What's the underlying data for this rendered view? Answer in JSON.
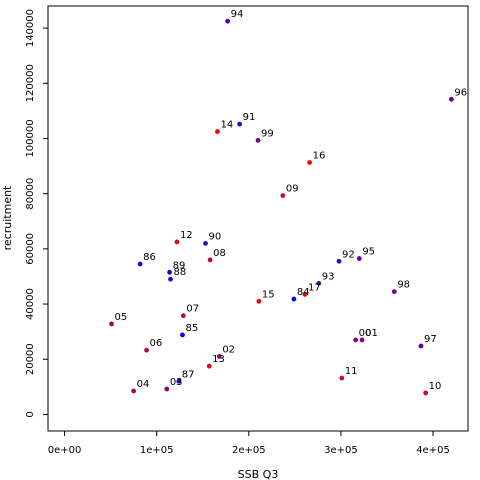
{
  "chart_data": {
    "type": "scatter",
    "xlabel": "SSB Q3",
    "ylabel": "recruitment",
    "xlim": [
      -18000,
      438000
    ],
    "ylim": [
      -6000,
      148000
    ],
    "x_ticks": [
      0,
      100000,
      200000,
      300000,
      400000
    ],
    "x_tick_labels": [
      "0e+00",
      "1e+05",
      "2e+05",
      "3e+05",
      "4e+05"
    ],
    "y_ticks": [
      0,
      20000,
      40000,
      60000,
      80000,
      100000,
      120000,
      140000
    ],
    "y_tick_labels": [
      "0",
      "20000",
      "40000",
      "60000",
      "80000",
      "100000",
      "120000",
      "140000"
    ],
    "grid": false,
    "color_start": "#0000ff",
    "color_end": "#ff0000",
    "color_mid": "#800080",
    "points": [
      {
        "label": "84",
        "x": 249000,
        "y": 41800,
        "color": "#0000ff"
      },
      {
        "label": "85",
        "x": 128000,
        "y": 28800,
        "color": "#1000ef"
      },
      {
        "label": "86",
        "x": 82000,
        "y": 54500,
        "color": "#2000df"
      },
      {
        "label": "87",
        "x": 124000,
        "y": 12000,
        "color": "#3000cf"
      },
      {
        "label": "88",
        "x": 115000,
        "y": 49000,
        "color": "#1800e7"
      },
      {
        "label": "89",
        "x": 114000,
        "y": 51500,
        "color": "#2000df"
      },
      {
        "label": "90",
        "x": 153000,
        "y": 62000,
        "color": "#3000cf"
      },
      {
        "label": "91",
        "x": 190000,
        "y": 105200,
        "color": "#3800c7"
      },
      {
        "label": "92",
        "x": 298000,
        "y": 55500,
        "color": "#4000bf"
      },
      {
        "label": "93",
        "x": 276000,
        "y": 47500,
        "color": "#4800b7"
      },
      {
        "label": "94",
        "x": 177000,
        "y": 142500,
        "color": "#5000af"
      },
      {
        "label": "95",
        "x": 320000,
        "y": 56500,
        "color": "#5800a7"
      },
      {
        "label": "96",
        "x": 420000,
        "y": 114200,
        "color": "#60009f"
      },
      {
        "label": "97",
        "x": 387000,
        "y": 24800,
        "color": "#680097"
      },
      {
        "label": "98",
        "x": 358000,
        "y": 44500,
        "color": "#70008f"
      },
      {
        "label": "99",
        "x": 210000,
        "y": 99300,
        "color": "#780087"
      },
      {
        "label": "00",
        "x": 316000,
        "y": 27000,
        "color": "#80007f"
      },
      {
        "label": "01",
        "x": 323000,
        "y": 27000,
        "color": "#880077"
      },
      {
        "label": "02",
        "x": 168000,
        "y": 21000,
        "color": "#90006f"
      },
      {
        "label": "03",
        "x": 111000,
        "y": 9200,
        "color": "#980067"
      },
      {
        "label": "04",
        "x": 75000,
        "y": 8500,
        "color": "#a0005f"
      },
      {
        "label": "05",
        "x": 51000,
        "y": 32800,
        "color": "#a80057"
      },
      {
        "label": "06",
        "x": 89000,
        "y": 23300,
        "color": "#b0004f"
      },
      {
        "label": "07",
        "x": 129000,
        "y": 35800,
        "color": "#b80047"
      },
      {
        "label": "08",
        "x": 158000,
        "y": 56000,
        "color": "#c0003f"
      },
      {
        "label": "09",
        "x": 237000,
        "y": 79300,
        "color": "#c80037"
      },
      {
        "label": "10",
        "x": 392000,
        "y": 7800,
        "color": "#d0002f"
      },
      {
        "label": "11",
        "x": 301000,
        "y": 13200,
        "color": "#d80027"
      },
      {
        "label": "12",
        "x": 122000,
        "y": 62500,
        "color": "#e0001f"
      },
      {
        "label": "13",
        "x": 157000,
        "y": 17500,
        "color": "#e80017"
      },
      {
        "label": "14",
        "x": 166000,
        "y": 102500,
        "color": "#ee0011"
      },
      {
        "label": "15",
        "x": 211000,
        "y": 41000,
        "color": "#f4000b"
      },
      {
        "label": "16",
        "x": 266000,
        "y": 91300,
        "color": "#f80007"
      },
      {
        "label": "17",
        "x": 261000,
        "y": 43500,
        "color": "#ff0000"
      }
    ]
  }
}
